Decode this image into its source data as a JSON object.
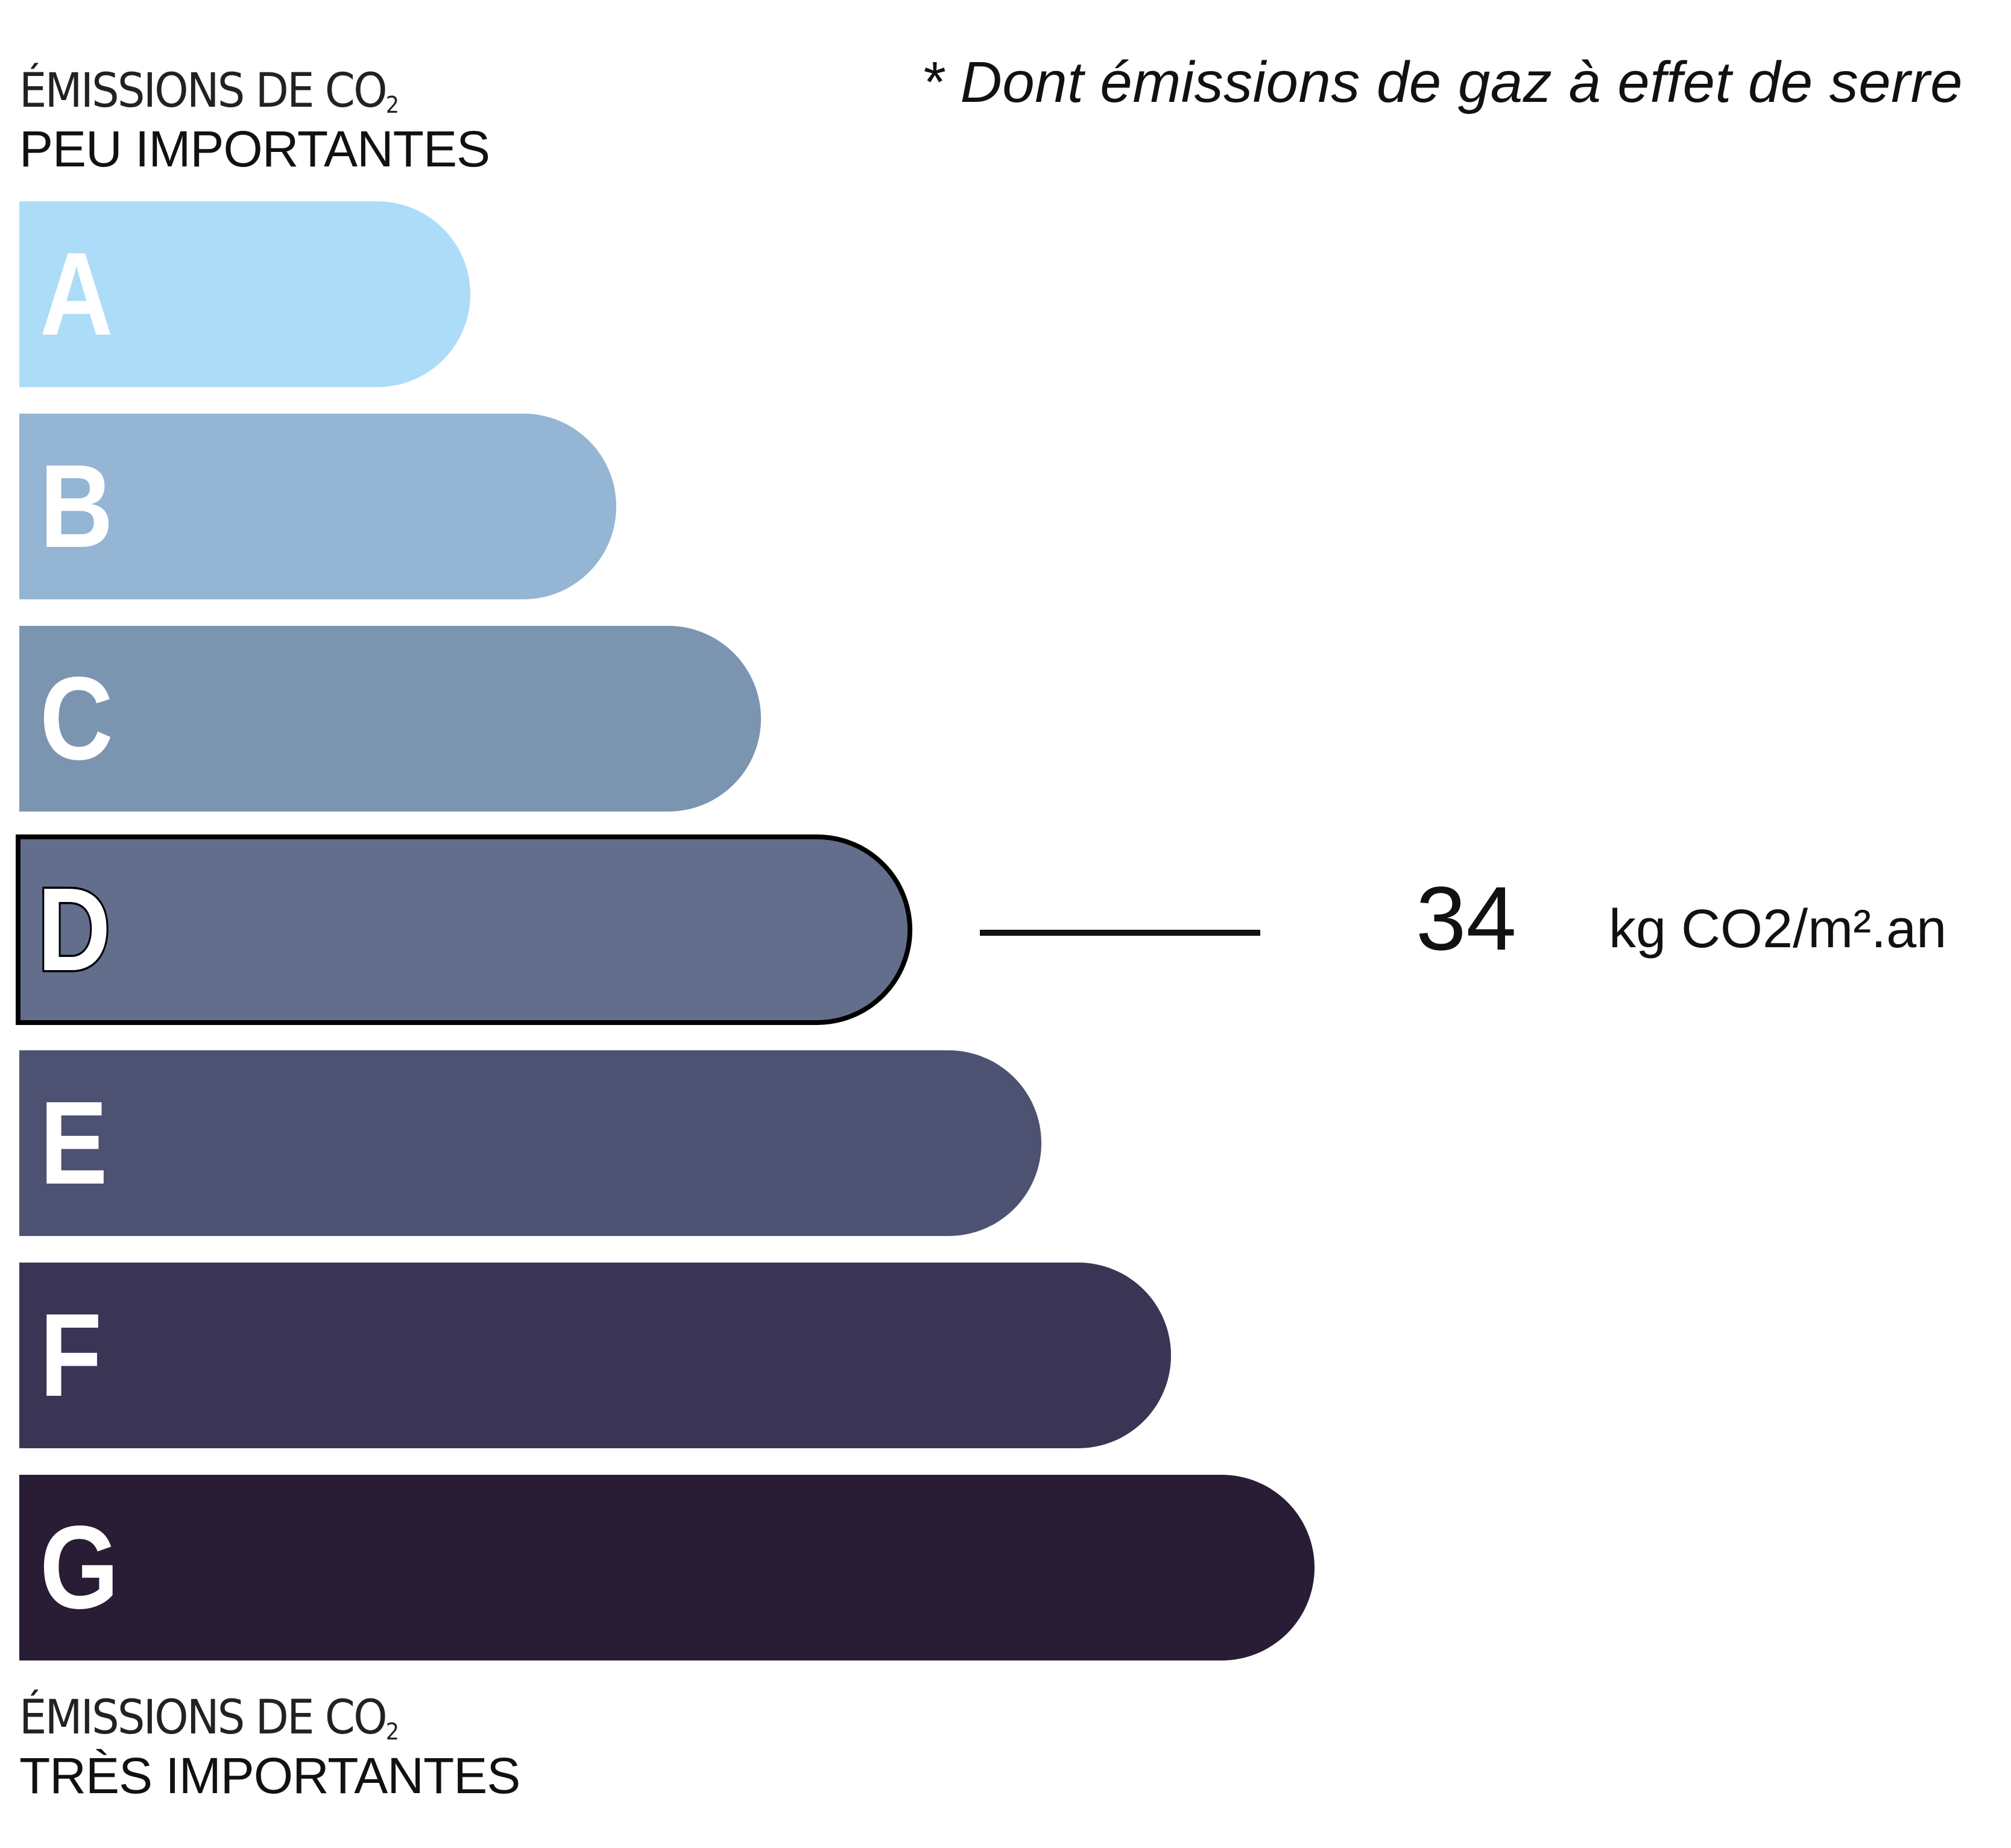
{
  "header": {
    "note": "* Dont émissions de gaz à effet de serre"
  },
  "top_caption": {
    "line1": "ÉMISSIONS DE CO",
    "sub": "2",
    "line2": "PEU IMPORTANTES"
  },
  "bottom_caption": {
    "line1": "ÉMISSIONS DE CO",
    "sub": "2",
    "line2": "TRÈS IMPORTANTES"
  },
  "classes": [
    {
      "letter": "A",
      "color": "#ADDCF8"
    },
    {
      "letter": "B",
      "color": "#94B5D4"
    },
    {
      "letter": "C",
      "color": "#7B95B1"
    },
    {
      "letter": "D",
      "color": "#636E8D"
    },
    {
      "letter": "E",
      "color": "#4E5272"
    },
    {
      "letter": "F",
      "color": "#3A3554"
    },
    {
      "letter": "G",
      "color": "#291C35"
    }
  ],
  "rating": {
    "selected_class": "D",
    "value": "34",
    "unit": "kg CO2/m².an"
  }
}
